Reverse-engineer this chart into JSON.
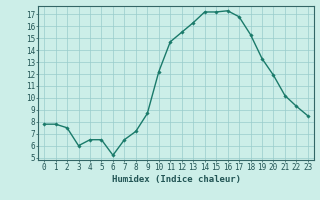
{
  "x": [
    0,
    1,
    2,
    3,
    4,
    5,
    6,
    7,
    8,
    9,
    10,
    11,
    12,
    13,
    14,
    15,
    16,
    17,
    18,
    19,
    20,
    21,
    22,
    23
  ],
  "y": [
    7.8,
    7.8,
    7.5,
    6.0,
    6.5,
    6.5,
    5.2,
    6.5,
    7.2,
    8.7,
    12.2,
    14.7,
    15.5,
    16.3,
    17.2,
    17.2,
    17.3,
    16.8,
    15.3,
    13.3,
    11.9,
    10.2,
    9.3,
    8.5
  ],
  "line_color": "#1a7a6a",
  "marker": "D",
  "marker_size": 1.8,
  "linewidth": 1.0,
  "xlabel": "Humidex (Indice chaleur)",
  "xlim": [
    -0.5,
    23.5
  ],
  "ylim": [
    4.8,
    17.7
  ],
  "yticks": [
    5,
    6,
    7,
    8,
    9,
    10,
    11,
    12,
    13,
    14,
    15,
    16,
    17
  ],
  "xticks": [
    0,
    1,
    2,
    3,
    4,
    5,
    6,
    7,
    8,
    9,
    10,
    11,
    12,
    13,
    14,
    15,
    16,
    17,
    18,
    19,
    20,
    21,
    22,
    23
  ],
  "bg_color": "#cceee8",
  "grid_color": "#99cccc",
  "axis_color": "#336666",
  "tick_color": "#225555",
  "label_color": "#225555",
  "font_size_label": 6.5,
  "font_size_tick": 5.5
}
